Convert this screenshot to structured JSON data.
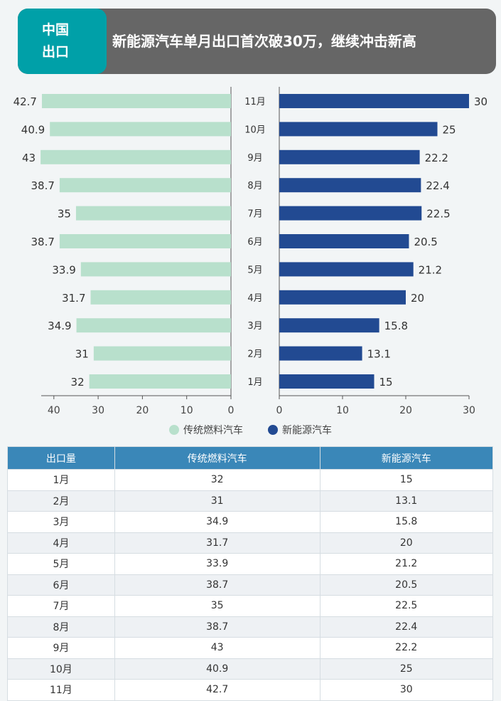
{
  "header": {
    "tag_line1": "中国",
    "tag_line2": "出口",
    "title": "新能源汽车单月出口首次破30万，继续冲击新高"
  },
  "chart_data": {
    "type": "bar",
    "categories": [
      "11月",
      "10月",
      "9月",
      "8月",
      "7月",
      "6月",
      "5月",
      "4月",
      "3月",
      "2月",
      "1月"
    ],
    "series": [
      {
        "name": "传统燃料汽车",
        "color": "#b8e0cc",
        "values": [
          42.7,
          40.9,
          43,
          38.7,
          35,
          38.7,
          33.9,
          31.7,
          34.9,
          31,
          32
        ]
      },
      {
        "name": "新能源汽车",
        "color": "#224a92",
        "values": [
          30,
          25,
          22.2,
          22.4,
          22.5,
          20.5,
          21.2,
          20,
          15.8,
          13.1,
          15
        ]
      }
    ],
    "left_ticks": [
      40,
      30,
      20,
      10,
      0
    ],
    "right_ticks": [
      0,
      10,
      20,
      30
    ],
    "left_xlim": [
      0,
      43
    ],
    "right_xlim": [
      0,
      30
    ],
    "legend": "bottom-center"
  },
  "table": {
    "headers": [
      "出口量",
      "传统燃料汽车",
      "新能源汽车"
    ],
    "rows": [
      [
        "1月",
        "32",
        "15"
      ],
      [
        "2月",
        "31",
        "13.1"
      ],
      [
        "3月",
        "34.9",
        "15.8"
      ],
      [
        "4月",
        "31.7",
        "20"
      ],
      [
        "5月",
        "33.9",
        "21.2"
      ],
      [
        "6月",
        "38.7",
        "20.5"
      ],
      [
        "7月",
        "35",
        "22.5"
      ],
      [
        "8月",
        "38.7",
        "22.4"
      ],
      [
        "9月",
        "43",
        "22.2"
      ],
      [
        "10月",
        "40.9",
        "25"
      ],
      [
        "11月",
        "42.7",
        "30"
      ]
    ]
  }
}
